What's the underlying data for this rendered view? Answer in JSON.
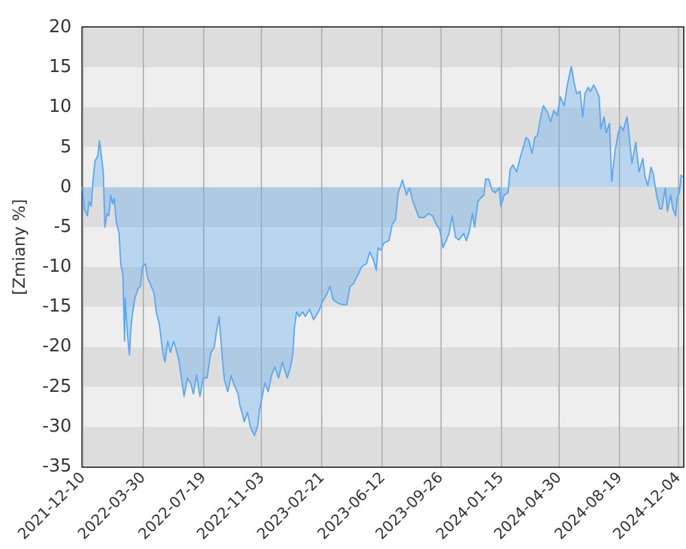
{
  "chart_data": {
    "type": "area",
    "ylabel": "[Zmiany %]",
    "series": [
      {
        "color": "#5aa9f2",
        "x": [
          "2021-12-10",
          "2021-12-13",
          "2021-12-19",
          "2021-12-22",
          "2021-12-26",
          "2021-12-29",
          "2022-01-02",
          "2022-01-07",
          "2022-01-10",
          "2022-01-12",
          "2022-01-17",
          "2022-01-20",
          "2022-01-24",
          "2022-01-27",
          "2022-01-31",
          "2022-02-03",
          "2022-02-06",
          "2022-02-10",
          "2022-02-15",
          "2022-02-18",
          "2022-02-22",
          "2022-02-25",
          "2022-02-26",
          "2022-03-03",
          "2022-03-06",
          "2022-03-09",
          "2022-03-12",
          "2022-03-16",
          "2022-03-22",
          "2022-03-26",
          "2022-03-30",
          "2022-04-04",
          "2022-04-08",
          "2022-04-15",
          "2022-04-20",
          "2022-04-24",
          "2022-04-30",
          "2022-05-06",
          "2022-05-10",
          "2022-05-15",
          "2022-05-20",
          "2022-05-26",
          "2022-06-01",
          "2022-06-05",
          "2022-06-11",
          "2022-06-14",
          "2022-06-20",
          "2022-06-26",
          "2022-07-01",
          "2022-07-07",
          "2022-07-13",
          "2022-07-19",
          "2022-07-26",
          "2022-08-02",
          "2022-08-08",
          "2022-08-13",
          "2022-08-17",
          "2022-08-23",
          "2022-08-27",
          "2022-09-02",
          "2022-09-08",
          "2022-09-14",
          "2022-09-21",
          "2022-09-24",
          "2022-09-28",
          "2022-10-02",
          "2022-10-08",
          "2022-10-14",
          "2022-10-21",
          "2022-10-27",
          "2022-10-30",
          "2022-11-05",
          "2022-11-09",
          "2022-11-15",
          "2022-11-21",
          "2022-11-27",
          "2022-12-04",
          "2022-12-11",
          "2022-12-20",
          "2022-12-26",
          "2022-12-30",
          "2023-01-02",
          "2023-01-06",
          "2023-01-11",
          "2023-01-17",
          "2023-01-22",
          "2023-01-30",
          "2023-02-06",
          "2023-02-15",
          "2023-02-22",
          "2023-03-03",
          "2023-03-08",
          "2023-03-14",
          "2023-03-20",
          "2023-03-29",
          "2023-04-08",
          "2023-04-14",
          "2023-04-20",
          "2023-04-28",
          "2023-05-06",
          "2023-05-14",
          "2023-05-20",
          "2023-05-26",
          "2023-06-01",
          "2023-06-04",
          "2023-06-09",
          "2023-06-15",
          "2023-06-24",
          "2023-06-30",
          "2023-07-06",
          "2023-07-11",
          "2023-07-19",
          "2023-07-26",
          "2023-08-01",
          "2023-08-07",
          "2023-08-12",
          "2023-08-18",
          "2023-08-27",
          "2023-09-05",
          "2023-09-12",
          "2023-09-19",
          "2023-09-25",
          "2023-10-01",
          "2023-10-07",
          "2023-10-12",
          "2023-10-18",
          "2023-10-24",
          "2023-10-30",
          "2023-11-08",
          "2023-11-13",
          "2023-11-18",
          "2023-11-24",
          "2023-11-28",
          "2023-12-04",
          "2023-12-10",
          "2023-12-15",
          "2023-12-18",
          "2023-12-24",
          "2023-12-30",
          "2024-01-05",
          "2024-01-12",
          "2024-01-15",
          "2024-01-21",
          "2024-01-28",
          "2024-02-01",
          "2024-02-06",
          "2024-02-13",
          "2024-02-19",
          "2024-02-25",
          "2024-03-01",
          "2024-03-06",
          "2024-03-12",
          "2024-03-17",
          "2024-03-22",
          "2024-03-28",
          "2024-04-02",
          "2024-04-10",
          "2024-04-15",
          "2024-04-21",
          "2024-04-27",
          "2024-05-03",
          "2024-05-10",
          "2024-05-15",
          "2024-05-19",
          "2024-05-23",
          "2024-05-28",
          "2024-06-02",
          "2024-06-08",
          "2024-06-13",
          "2024-06-17",
          "2024-06-23",
          "2024-06-27",
          "2024-07-03",
          "2024-07-09",
          "2024-07-13",
          "2024-07-16",
          "2024-07-22",
          "2024-07-26",
          "2024-08-01",
          "2024-08-05",
          "2024-08-11",
          "2024-08-17",
          "2024-08-21",
          "2024-08-26",
          "2024-09-02",
          "2024-09-05",
          "2024-09-11",
          "2024-09-18",
          "2024-09-24",
          "2024-10-01",
          "2024-10-05",
          "2024-10-10",
          "2024-10-16",
          "2024-10-20",
          "2024-10-24",
          "2024-10-27",
          "2024-11-01",
          "2024-11-05",
          "2024-11-11",
          "2024-11-15",
          "2024-11-21",
          "2024-11-25",
          "2024-11-30",
          "2024-12-03",
          "2024-12-07",
          "2024-12-10",
          "2024-12-13"
        ],
        "values": [
          0,
          -2.7,
          -3.6,
          -1.8,
          -2.4,
          0.7,
          3.3,
          3.9,
          5.8,
          4.8,
          1.9,
          -5,
          -3.3,
          -3.6,
          -1,
          -2.1,
          -1.4,
          -4.4,
          -5.8,
          -9.6,
          -11,
          -19.3,
          -13.9,
          -19,
          -21,
          -17.3,
          -15.6,
          -13.9,
          -12.7,
          -12.4,
          -9.9,
          -9.6,
          -11.3,
          -12.4,
          -13.3,
          -15.6,
          -17.3,
          -20.7,
          -21.9,
          -19.3,
          -20.7,
          -19.3,
          -20.7,
          -21.9,
          -24.8,
          -26.2,
          -23.9,
          -24.5,
          -25.9,
          -23.5,
          -26.2,
          -23.9,
          -23.9,
          -20.7,
          -20.1,
          -17.8,
          -16.2,
          -21.3,
          -24.2,
          -25.6,
          -23.6,
          -24.8,
          -25.9,
          -27.3,
          -28.2,
          -29.4,
          -28.2,
          -30.2,
          -31.1,
          -29.9,
          -27.9,
          -25.9,
          -24.5,
          -25.6,
          -23.6,
          -22.5,
          -23.9,
          -21.9,
          -23.9,
          -22.5,
          -21,
          -17.6,
          -15.6,
          -16.2,
          -15.6,
          -16.2,
          -15.3,
          -16.6,
          -15.6,
          -14.4,
          -13.3,
          -12.4,
          -14.1,
          -14.4,
          -14.7,
          -14.7,
          -12.4,
          -12.1,
          -11,
          -9.9,
          -9.6,
          -8.1,
          -9,
          -10.4,
          -7.6,
          -7.9,
          -7,
          -6.7,
          -4.7,
          -4.1,
          -0.7,
          0.9,
          -1,
          -0.1,
          -1.8,
          -2.7,
          -3.8,
          -3.8,
          -3.3,
          -3.6,
          -4.7,
          -5.3,
          -7.6,
          -6.7,
          -5.8,
          -3.6,
          -6.3,
          -6.6,
          -5.8,
          -6.7,
          -5.6,
          -3.3,
          -5,
          -1.8,
          -1.3,
          -1,
          1,
          1,
          -0.4,
          -0.7,
          -0.1,
          -2.4,
          -1,
          -0.7,
          2.2,
          2.8,
          1.9,
          3.6,
          5,
          6.2,
          5.9,
          4.2,
          6.2,
          6.5,
          8.8,
          10.2,
          9.3,
          8.2,
          9.6,
          9,
          11.3,
          10.2,
          12.5,
          13.9,
          15.1,
          13.1,
          11.7,
          12,
          8.8,
          11.7,
          12.5,
          12,
          12.8,
          12,
          11.3,
          7.3,
          8.8,
          6.8,
          8,
          0.7,
          4.5,
          6.8,
          7.6,
          7.1,
          8.8,
          7.1,
          3,
          5.6,
          1.9,
          3.6,
          1.3,
          0.2,
          2.5,
          1.7,
          -0.1,
          -1.3,
          -2.7,
          -2.7,
          -0.1,
          -3,
          -1,
          -2.7,
          -3.6,
          -1.3,
          -0.7,
          1.5,
          1.3
        ]
      }
    ],
    "xlim": [
      "2021-12-10",
      "2024-12-14"
    ],
    "xticks": [
      "2021-12-10",
      "2022-03-30",
      "2022-07-19",
      "2022-11-03",
      "2023-02-21",
      "2023-06-12",
      "2023-09-26",
      "2024-01-15",
      "2024-04-30",
      "2024-08-19",
      "2024-12-04"
    ],
    "ylim": [
      -35,
      20
    ],
    "yticks": [
      -35,
      -30,
      -25,
      -20,
      -15,
      -10,
      -5,
      0,
      5,
      10,
      15,
      20
    ],
    "grid": true,
    "marker": "none",
    "line_style": "solid"
  }
}
